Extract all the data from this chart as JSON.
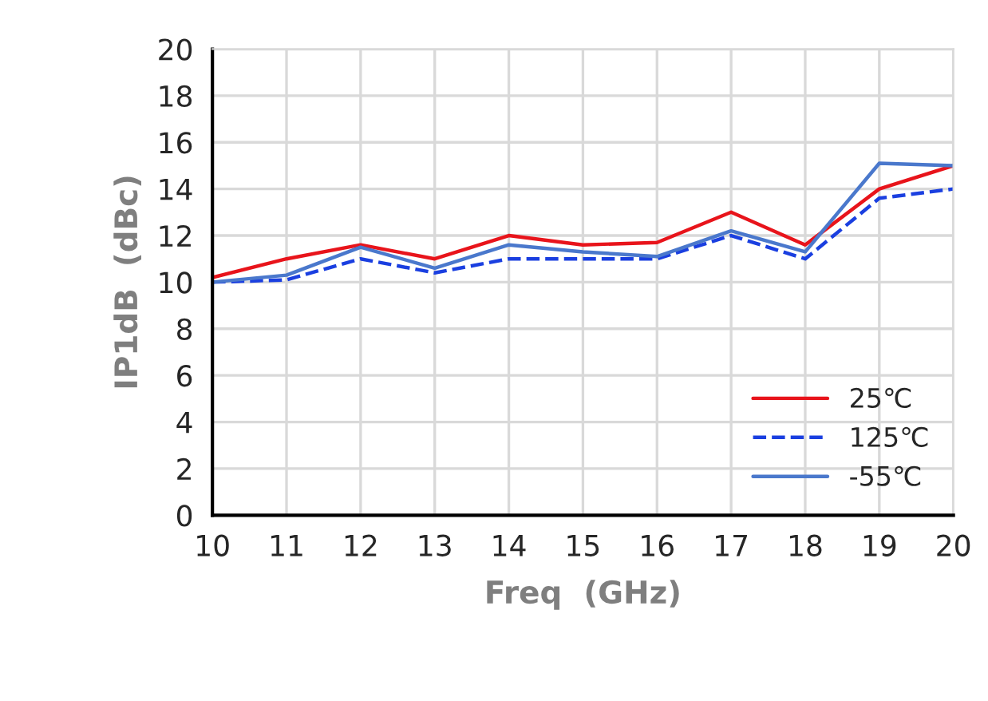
{
  "chart_data": {
    "type": "line",
    "xlabel": "Freq  (GHz)",
    "ylabel": "IP1dB  (dBc)",
    "x": [
      10,
      11,
      12,
      13,
      14,
      15,
      16,
      17,
      18,
      19,
      20
    ],
    "series": [
      {
        "name": "25℃",
        "color": "#e8141b",
        "line_style": "solid",
        "values": [
          10.2,
          11,
          11.6,
          11,
          12,
          11.6,
          11.7,
          13,
          11.6,
          14,
          15
        ]
      },
      {
        "name": "125℃",
        "color": "#1a3fe0",
        "line_style": "dashed",
        "values": [
          10,
          10.1,
          11,
          10.4,
          11,
          11,
          11,
          12,
          11,
          13.6,
          14
        ]
      },
      {
        "name": "-55℃",
        "color": "#4a78cc",
        "line_style": "solid",
        "values": [
          10,
          10.3,
          11.5,
          10.6,
          11.6,
          11.3,
          11.1,
          12.2,
          11.3,
          15.1,
          15
        ]
      }
    ],
    "xlim": [
      10,
      20
    ],
    "xticks": [
      10,
      11,
      12,
      13,
      14,
      15,
      16,
      17,
      18,
      19,
      20
    ],
    "ylim": [
      0,
      20
    ],
    "yticks": [
      0,
      2,
      4,
      6,
      8,
      10,
      12,
      14,
      16,
      18,
      20
    ],
    "grid": true,
    "legend": "bottom right",
    "marker": "none"
  }
}
